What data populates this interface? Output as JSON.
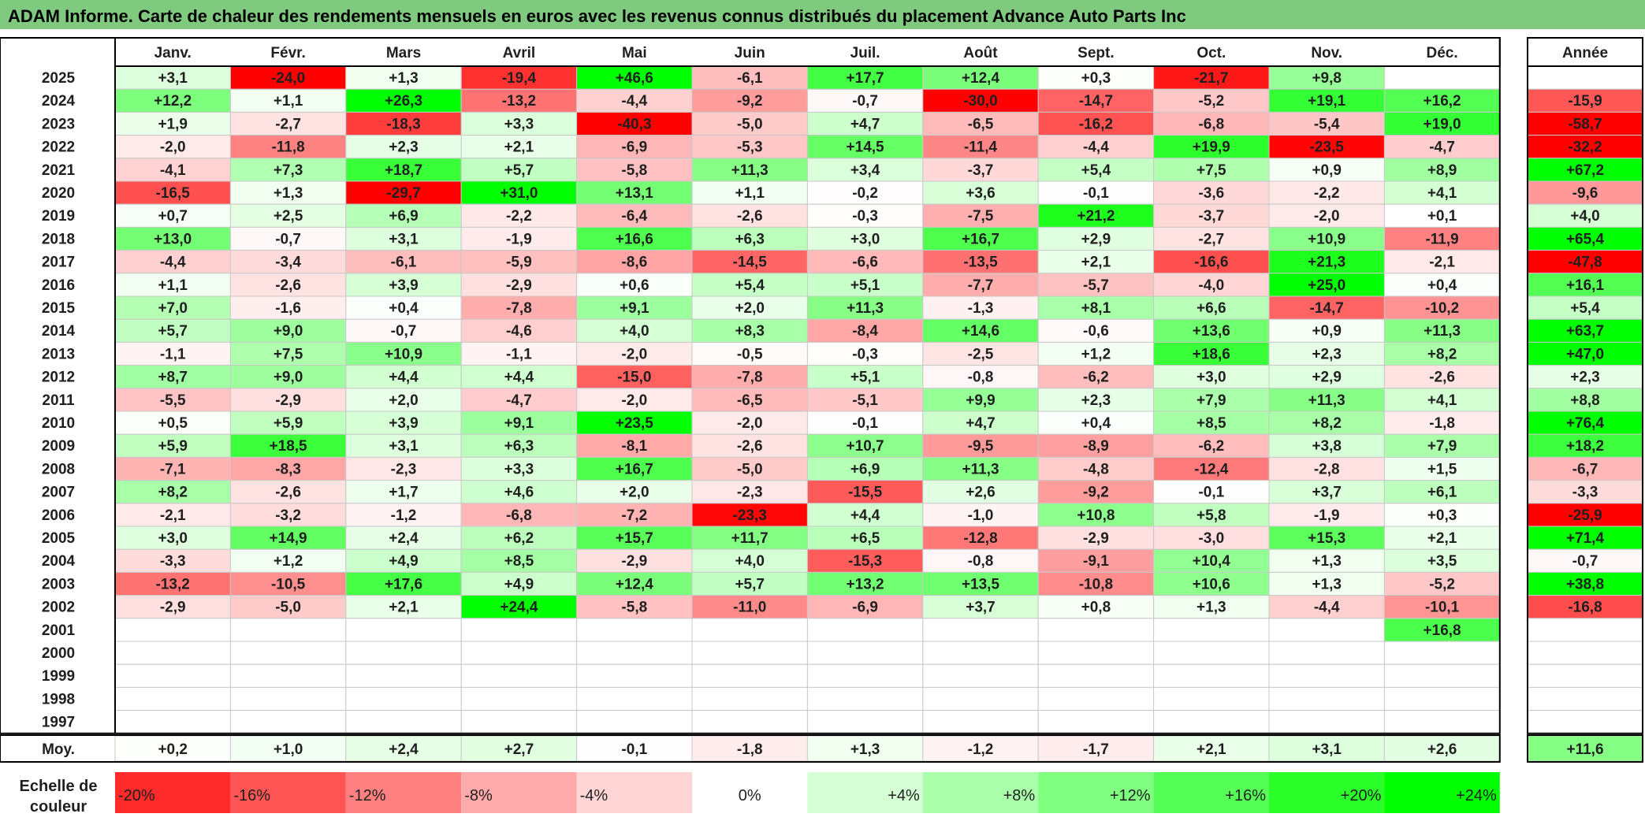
{
  "title": "ADAM Informe. Carte de chaleur des rendements mensuels en euros avec les revenus connus distribués du placement Advance Auto Parts Inc",
  "colors": {
    "title_bg": "#7fca7f",
    "max_red": "#ff0000",
    "max_green": "#00ff00",
    "neutral": "#ffffff",
    "text": "#1f1f1f"
  },
  "chart_data": {
    "type": "heatmap",
    "title": "ADAM Informe. Carte de chaleur des rendements mensuels en euros avec les revenus connus distribués du placement Advance Auto Parts Inc",
    "months": [
      "Janv.",
      "Févr.",
      "Mars",
      "Avril",
      "Mai",
      "Juin",
      "Juil.",
      "Août",
      "Sept.",
      "Oct.",
      "Nov.",
      "Déc."
    ],
    "year_header": "Année",
    "rows": [
      {
        "year": "2025",
        "months": [
          "+3,1",
          "-24,0",
          "+1,3",
          "-19,4",
          "+46,6",
          "-6,1",
          "+17,7",
          "+12,4",
          "+0,3",
          "-21,7",
          "+9,8",
          ""
        ],
        "annual": ""
      },
      {
        "year": "2024",
        "months": [
          "+12,2",
          "+1,1",
          "+26,3",
          "-13,2",
          "-4,4",
          "-9,2",
          "-0,7",
          "-30,0",
          "-14,7",
          "-5,2",
          "+19,1",
          "+16,2"
        ],
        "annual": "-15,9"
      },
      {
        "year": "2023",
        "months": [
          "+1,9",
          "-2,7",
          "-18,3",
          "+3,3",
          "-40,3",
          "-5,0",
          "+4,7",
          "-6,5",
          "-16,2",
          "-6,8",
          "-5,4",
          "+19,0"
        ],
        "annual": "-58,7"
      },
      {
        "year": "2022",
        "months": [
          "-2,0",
          "-11,8",
          "+2,3",
          "+2,1",
          "-6,9",
          "-5,3",
          "+14,5",
          "-11,4",
          "-4,4",
          "+19,9",
          "-23,5",
          "-4,7"
        ],
        "annual": "-32,2"
      },
      {
        "year": "2021",
        "months": [
          "-4,1",
          "+7,3",
          "+18,7",
          "+5,7",
          "-5,8",
          "+11,3",
          "+3,4",
          "-3,7",
          "+5,4",
          "+7,5",
          "+0,9",
          "+8,9"
        ],
        "annual": "+67,2"
      },
      {
        "year": "2020",
        "months": [
          "-16,5",
          "+1,3",
          "-29,7",
          "+31,0",
          "+13,1",
          "+1,1",
          "-0,2",
          "+3,6",
          "-0,1",
          "-3,6",
          "-2,2",
          "+4,1"
        ],
        "annual": "-9,6"
      },
      {
        "year": "2019",
        "months": [
          "+0,7",
          "+2,5",
          "+6,9",
          "-2,2",
          "-6,4",
          "-2,6",
          "-0,3",
          "-7,5",
          "+21,2",
          "-3,7",
          "-2,0",
          "+0,1"
        ],
        "annual": "+4,0"
      },
      {
        "year": "2018",
        "months": [
          "+13,0",
          "-0,7",
          "+3,1",
          "-1,9",
          "+16,6",
          "+6,3",
          "+3,0",
          "+16,7",
          "+2,9",
          "-2,7",
          "+10,9",
          "-11,9"
        ],
        "annual": "+65,4"
      },
      {
        "year": "2017",
        "months": [
          "-4,4",
          "-3,4",
          "-6,1",
          "-5,9",
          "-8,6",
          "-14,5",
          "-6,6",
          "-13,5",
          "+2,1",
          "-16,6",
          "+21,3",
          "-2,1"
        ],
        "annual": "-47,8"
      },
      {
        "year": "2016",
        "months": [
          "+1,1",
          "-2,6",
          "+3,9",
          "-2,9",
          "+0,6",
          "+5,4",
          "+5,1",
          "-7,7",
          "-5,7",
          "-4,0",
          "+25,0",
          "+0,4"
        ],
        "annual": "+16,1"
      },
      {
        "year": "2015",
        "months": [
          "+7,0",
          "-1,6",
          "+0,4",
          "-7,8",
          "+9,1",
          "+2,0",
          "+11,3",
          "-1,3",
          "+8,1",
          "+6,6",
          "-14,7",
          "-10,2"
        ],
        "annual": "+5,4"
      },
      {
        "year": "2014",
        "months": [
          "+5,7",
          "+9,0",
          "-0,7",
          "-4,6",
          "+4,0",
          "+8,3",
          "-8,4",
          "+14,6",
          "-0,6",
          "+13,6",
          "+0,9",
          "+11,3"
        ],
        "annual": "+63,7"
      },
      {
        "year": "2013",
        "months": [
          "-1,1",
          "+7,5",
          "+10,9",
          "-1,1",
          "-2,0",
          "-0,5",
          "-0,3",
          "-2,5",
          "+1,2",
          "+18,6",
          "+2,3",
          "+8,2"
        ],
        "annual": "+47,0"
      },
      {
        "year": "2012",
        "months": [
          "+8,7",
          "+9,0",
          "+4,4",
          "+4,4",
          "-15,0",
          "-7,8",
          "+5,1",
          "-0,8",
          "-6,2",
          "+3,0",
          "+2,9",
          "-2,6"
        ],
        "annual": "+2,3"
      },
      {
        "year": "2011",
        "months": [
          "-5,5",
          "-2,9",
          "+2,0",
          "-4,7",
          "-2,0",
          "-6,5",
          "-5,1",
          "+9,9",
          "+2,3",
          "+7,9",
          "+11,3",
          "+4,1"
        ],
        "annual": "+8,8"
      },
      {
        "year": "2010",
        "months": [
          "+0,5",
          "+5,9",
          "+3,9",
          "+9,1",
          "+23,5",
          "-2,0",
          "-0,1",
          "+4,7",
          "+0,4",
          "+8,5",
          "+8,2",
          "-1,8"
        ],
        "annual": "+76,4"
      },
      {
        "year": "2009",
        "months": [
          "+5,9",
          "+18,5",
          "+3,1",
          "+6,3",
          "-8,1",
          "-2,6",
          "+10,7",
          "-9,5",
          "-8,9",
          "-6,2",
          "+3,8",
          "+7,9"
        ],
        "annual": "+18,2"
      },
      {
        "year": "2008",
        "months": [
          "-7,1",
          "-8,3",
          "-2,3",
          "+3,3",
          "+16,7",
          "-5,0",
          "+6,9",
          "+11,3",
          "-4,8",
          "-12,4",
          "-2,8",
          "+1,5"
        ],
        "annual": "-6,7"
      },
      {
        "year": "2007",
        "months": [
          "+8,2",
          "-2,6",
          "+1,7",
          "+4,6",
          "+2,0",
          "-2,3",
          "-15,5",
          "+2,6",
          "-9,2",
          "-0,1",
          "+3,7",
          "+6,1"
        ],
        "annual": "-3,3"
      },
      {
        "year": "2006",
        "months": [
          "-2,1",
          "-3,2",
          "-1,2",
          "-6,8",
          "-7,2",
          "-23,3",
          "+4,4",
          "-1,0",
          "+10,8",
          "+5,8",
          "-1,9",
          "+0,3"
        ],
        "annual": "-25,9"
      },
      {
        "year": "2005",
        "months": [
          "+3,0",
          "+14,9",
          "+2,4",
          "+6,2",
          "+15,7",
          "+11,7",
          "+6,5",
          "-12,8",
          "-2,9",
          "-3,0",
          "+15,3",
          "+2,1"
        ],
        "annual": "+71,4"
      },
      {
        "year": "2004",
        "months": [
          "-3,3",
          "+1,2",
          "+4,9",
          "+8,5",
          "-2,9",
          "+4,0",
          "-15,3",
          "-0,8",
          "-9,1",
          "+10,4",
          "+1,3",
          "+3,5"
        ],
        "annual": "-0,7"
      },
      {
        "year": "2003",
        "months": [
          "-13,2",
          "-10,5",
          "+17,6",
          "+4,9",
          "+12,4",
          "+5,7",
          "+13,2",
          "+13,5",
          "-10,8",
          "+10,6",
          "+1,3",
          "-5,2"
        ],
        "annual": "+38,8"
      },
      {
        "year": "2002",
        "months": [
          "-2,9",
          "-5,0",
          "+2,1",
          "+24,4",
          "-5,8",
          "-11,0",
          "-6,9",
          "+3,7",
          "+0,8",
          "+1,3",
          "-4,4",
          "-10,1"
        ],
        "annual": "-16,8"
      },
      {
        "year": "2001",
        "months": [
          "",
          "",
          "",
          "",
          "",
          "",
          "",
          "",
          "",
          "",
          "",
          "+16,8"
        ],
        "annual": ""
      },
      {
        "year": "2000",
        "months": [
          "",
          "",
          "",
          "",
          "",
          "",
          "",
          "",
          "",
          "",
          "",
          ""
        ],
        "annual": ""
      },
      {
        "year": "1999",
        "months": [
          "",
          "",
          "",
          "",
          "",
          "",
          "",
          "",
          "",
          "",
          "",
          ""
        ],
        "annual": ""
      },
      {
        "year": "1998",
        "months": [
          "",
          "",
          "",
          "",
          "",
          "",
          "",
          "",
          "",
          "",
          "",
          ""
        ],
        "annual": ""
      },
      {
        "year": "1997",
        "months": [
          "",
          "",
          "",
          "",
          "",
          "",
          "",
          "",
          "",
          "",
          "",
          ""
        ],
        "annual": ""
      }
    ],
    "average": {
      "label": "Moy.",
      "months": [
        "+0,2",
        "+1,0",
        "+2,4",
        "+2,7",
        "-0,1",
        "-1,8",
        "+1,3",
        "-1,2",
        "-1,7",
        "+2,1",
        "+3,1",
        "+2,6"
      ],
      "annual": "+11,6"
    },
    "scale": {
      "label_line1": "Echelle de",
      "label_line2": "couleur",
      "labels": [
        "-20%",
        "-16%",
        "-12%",
        "-8%",
        "-4%",
        "0%",
        "+4%",
        "+8%",
        "+12%",
        "+16%",
        "+20%",
        "+24%"
      ],
      "values": [
        -20,
        -16,
        -12,
        -8,
        -4,
        0,
        4,
        8,
        12,
        16,
        20,
        24
      ]
    }
  }
}
